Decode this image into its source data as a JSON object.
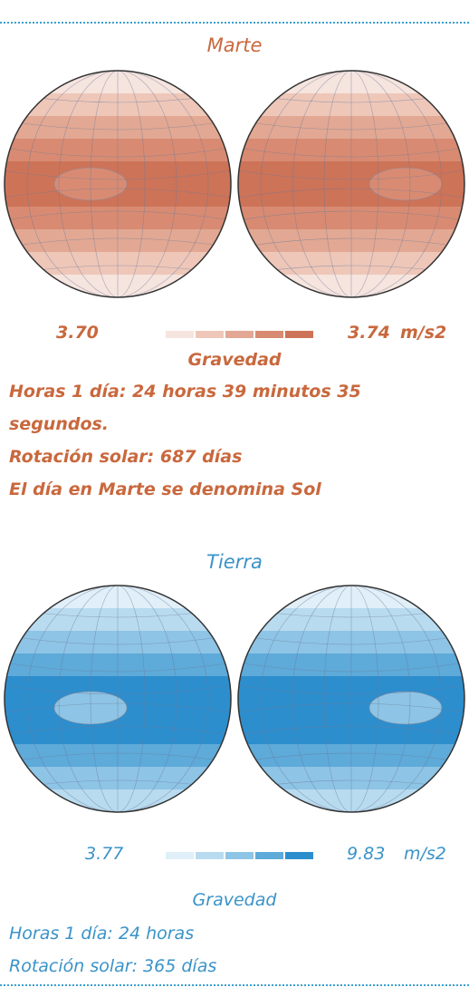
{
  "sections": [
    {
      "title": "Marte",
      "legend": {
        "min": "3.70",
        "max": "3.74",
        "unit": "m/s2"
      },
      "label": "Gravedad",
      "lines": [
        "Horas 1 día: 24 horas 39 minutos 35 segundos.",
        "Rotación solar: 687 días",
        "El día en Marte se denomina Sol"
      ]
    },
    {
      "title": "Tierra",
      "legend": {
        "min": "3.77",
        "max": "9.83",
        "unit": "m/s2"
      },
      "label": "Gravedad",
      "lines": [
        "Horas 1 día: 24 horas",
        "Rotación solar: 365 días"
      ]
    }
  ]
}
